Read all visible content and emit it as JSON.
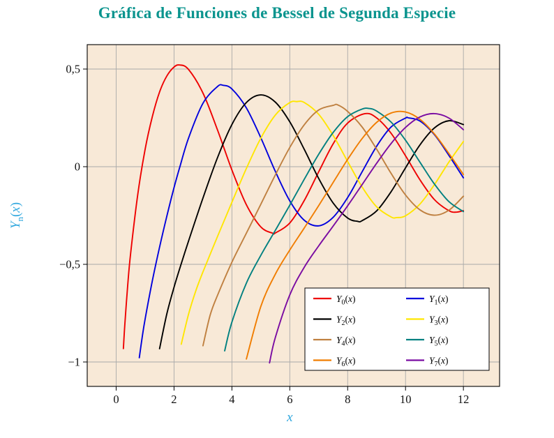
{
  "chart_data": {
    "type": "line",
    "title": "Gráfica de Funciones de Bessel de Segunda Especie",
    "xlabel": "x",
    "ylabel": "Yn(x)",
    "ylabel_parts": [
      "Y",
      "n",
      "(x)"
    ],
    "xlim": [
      -1.0,
      13.25
    ],
    "ylim": [
      -1.125,
      0.625
    ],
    "x_ticks": [
      0,
      2,
      4,
      6,
      8,
      10,
      12
    ],
    "x_tick_labels": [
      "0",
      "2",
      "4",
      "6",
      "8",
      "10",
      "12"
    ],
    "y_ticks": [
      0.5,
      0,
      -0.5,
      -1
    ],
    "y_tick_labels": [
      "0,5",
      "0",
      "−0,5",
      "−1"
    ],
    "grid": true,
    "legend_position": "bottom-right",
    "colors": {
      "plot_bg": "#f8e9d7",
      "grid": "#a9a9a9",
      "frame": "#000000",
      "tick_label": "#111111",
      "title": "#0a948e",
      "axis_label": "#2fa7de",
      "legend_bg": "#ffffff",
      "legend_border": "#000000"
    },
    "series": [
      {
        "id": "Y0",
        "label": "Y0(x)",
        "sub": "0",
        "color": "#ee0000",
        "points": [
          [
            0.25,
            -0.9316
          ],
          [
            0.3,
            -0.8073
          ],
          [
            0.4,
            -0.606
          ],
          [
            0.5,
            -0.4445
          ],
          [
            0.75,
            -0.139
          ],
          [
            1,
            0.0883
          ],
          [
            1.25,
            0.2561
          ],
          [
            1.5,
            0.3824
          ],
          [
            1.75,
            0.464
          ],
          [
            2,
            0.5104
          ],
          [
            2.2,
            0.5208
          ],
          [
            2.5,
            0.4981
          ],
          [
            3,
            0.3769
          ],
          [
            3.5,
            0.189
          ],
          [
            4,
            -0.0169
          ],
          [
            4.5,
            -0.1947
          ],
          [
            5,
            -0.3085
          ],
          [
            5.4,
            -0.3402
          ],
          [
            5.5,
            -0.3395
          ],
          [
            6,
            -0.2882
          ],
          [
            6.5,
            -0.1732
          ],
          [
            7,
            -0.0259
          ],
          [
            7.5,
            0.1173
          ],
          [
            8,
            0.2235
          ],
          [
            8.6,
            0.2716
          ],
          [
            9,
            0.2499
          ],
          [
            9.5,
            0.1712
          ],
          [
            10,
            0.0557
          ],
          [
            10.5,
            -0.0675
          ],
          [
            11,
            -0.1688
          ],
          [
            11.5,
            -0.2252
          ],
          [
            11.75,
            -0.2328
          ],
          [
            12,
            -0.2252
          ]
        ]
      },
      {
        "id": "Y1",
        "label": "Y1(x)",
        "sub": "1",
        "color": "#0000dd",
        "points": [
          [
            0.8,
            -0.9781
          ],
          [
            0.9,
            -0.8731
          ],
          [
            1,
            -0.7812
          ],
          [
            1.25,
            -0.5848
          ],
          [
            1.5,
            -0.4123
          ],
          [
            1.75,
            -0.2542
          ],
          [
            2,
            -0.107
          ],
          [
            2.2,
            -0.0015
          ],
          [
            2.5,
            0.1459
          ],
          [
            3,
            0.3247
          ],
          [
            3.5,
            0.4102
          ],
          [
            3.7,
            0.4167
          ],
          [
            4,
            0.3979
          ],
          [
            4.5,
            0.301
          ],
          [
            5,
            0.1479
          ],
          [
            5.5,
            -0.0238
          ],
          [
            6,
            -0.175
          ],
          [
            6.5,
            -0.2741
          ],
          [
            7,
            -0.3027
          ],
          [
            7.5,
            -0.2591
          ],
          [
            8,
            -0.1581
          ],
          [
            8.5,
            -0.0262
          ],
          [
            9,
            0.1043
          ],
          [
            9.5,
            0.2032
          ],
          [
            10,
            0.249
          ],
          [
            10.1,
            0.25
          ],
          [
            10.5,
            0.2337
          ],
          [
            11,
            0.1637
          ],
          [
            11.5,
            0.0579
          ],
          [
            12,
            -0.0571
          ]
        ]
      },
      {
        "id": "Y2",
        "label": "Y2(x)",
        "sub": "2",
        "color": "#000000",
        "points": [
          [
            1.5,
            -0.9321
          ],
          [
            1.75,
            -0.7545
          ],
          [
            2,
            -0.6174
          ],
          [
            2.25,
            -0.4965
          ],
          [
            2.5,
            -0.3814
          ],
          [
            3,
            -0.1604
          ],
          [
            3.5,
            0.0454
          ],
          [
            4,
            0.2159
          ],
          [
            4.5,
            0.3285
          ],
          [
            5,
            0.3677
          ],
          [
            5.5,
            0.3308
          ],
          [
            6,
            0.2299
          ],
          [
            6.5,
            0.0889
          ],
          [
            7,
            -0.0606
          ],
          [
            7.5,
            -0.1864
          ],
          [
            8,
            -0.263
          ],
          [
            8.35,
            -0.28
          ],
          [
            8.5,
            -0.2764
          ],
          [
            9,
            -0.2267
          ],
          [
            9.5,
            -0.1284
          ],
          [
            10,
            -0.0059
          ],
          [
            10.5,
            0.112
          ],
          [
            11,
            0.1986
          ],
          [
            11.5,
            0.2353
          ],
          [
            12,
            0.2157
          ]
        ]
      },
      {
        "id": "Y3",
        "label": "Y3(x)",
        "sub": "3",
        "color": "#ffe600",
        "points": [
          [
            2.25,
            -0.909
          ],
          [
            2.5,
            -0.7561
          ],
          [
            2.75,
            -0.6367
          ],
          [
            3,
            -0.5386
          ],
          [
            3.5,
            -0.3583
          ],
          [
            4,
            -0.182
          ],
          [
            4.5,
            -0.009
          ],
          [
            5,
            0.1462
          ],
          [
            5.5,
            0.2644
          ],
          [
            6,
            0.3282
          ],
          [
            6.25,
            0.3335
          ],
          [
            6.5,
            0.3288
          ],
          [
            7,
            0.2681
          ],
          [
            7.5,
            0.1597
          ],
          [
            8,
            0.0266
          ],
          [
            8.5,
            -0.1039
          ],
          [
            9,
            -0.2051
          ],
          [
            9.5,
            -0.2573
          ],
          [
            9.7,
            -0.2605
          ],
          [
            10,
            -0.2514
          ],
          [
            10.5,
            -0.191
          ],
          [
            11,
            -0.0915
          ],
          [
            11.5,
            0.0239
          ],
          [
            12,
            0.129
          ]
        ]
      },
      {
        "id": "Y4",
        "label": "Y4(x)",
        "sub": "4",
        "color": "#bf8040",
        "points": [
          [
            3,
            -0.9168
          ],
          [
            3.25,
            -0.7591
          ],
          [
            3.5,
            -0.6596
          ],
          [
            4,
            -0.4889
          ],
          [
            4.5,
            -0.3405
          ],
          [
            5,
            -0.1922
          ],
          [
            5.5,
            -0.0424
          ],
          [
            6,
            0.0984
          ],
          [
            6.5,
            0.2146
          ],
          [
            7,
            0.2904
          ],
          [
            7.5,
            0.3141
          ],
          [
            7.65,
            0.3168
          ],
          [
            8,
            0.283
          ],
          [
            8.5,
            0.2031
          ],
          [
            9,
            0.09
          ],
          [
            9.5,
            -0.0341
          ],
          [
            10,
            -0.1449
          ],
          [
            10.5,
            -0.2212
          ],
          [
            11,
            -0.2485
          ],
          [
            11.5,
            -0.2228
          ],
          [
            12,
            -0.1512
          ]
        ]
      },
      {
        "id": "Y5",
        "label": "Y5(x)",
        "sub": "5",
        "color": "#008080",
        "points": [
          [
            3.75,
            -0.9431
          ],
          [
            4,
            -0.7958
          ],
          [
            4.5,
            -0.5963
          ],
          [
            5,
            -0.4537
          ],
          [
            5.5,
            -0.3261
          ],
          [
            6,
            -0.1971
          ],
          [
            6.5,
            -0.0646
          ],
          [
            7,
            0.0638
          ],
          [
            7.5,
            0.1754
          ],
          [
            8,
            0.2564
          ],
          [
            8.5,
            0.295
          ],
          [
            8.75,
            0.298
          ],
          [
            9,
            0.2851
          ],
          [
            9.5,
            0.2286
          ],
          [
            10,
            0.1354
          ],
          [
            10.5,
            0.0225
          ],
          [
            11,
            -0.0892
          ],
          [
            11.5,
            -0.1789
          ],
          [
            12,
            -0.2298
          ]
        ]
      },
      {
        "id": "Y6",
        "label": "Y6(x)",
        "sub": "6",
        "color": "#f07d00",
        "points": [
          [
            4.5,
            -0.9847
          ],
          [
            5,
            -0.7153
          ],
          [
            5.5,
            -0.5505
          ],
          [
            6,
            -0.4268
          ],
          [
            6.5,
            -0.3141
          ],
          [
            7,
            -0.1993
          ],
          [
            7.5,
            -0.0803
          ],
          [
            8,
            0.0375
          ],
          [
            8.5,
            0.144
          ],
          [
            9,
            0.2267
          ],
          [
            9.5,
            0.2747
          ],
          [
            10,
            0.2803
          ],
          [
            10.5,
            0.2426
          ],
          [
            11,
            0.1674
          ],
          [
            11.5,
            0.0672
          ],
          [
            12,
            -0.0403
          ]
        ]
      },
      {
        "id": "Y7",
        "label": "Y7(x)",
        "sub": "7",
        "color": "#7a0ca2",
        "points": [
          [
            5.3,
            -1.0047
          ],
          [
            5.5,
            -0.875
          ],
          [
            6,
            -0.6566
          ],
          [
            6.5,
            -0.5152
          ],
          [
            7,
            -0.4054
          ],
          [
            7.5,
            -0.3038
          ],
          [
            8,
            -0.2001
          ],
          [
            8.5,
            -0.0917
          ],
          [
            9,
            0.0172
          ],
          [
            9.5,
            0.1184
          ],
          [
            10,
            0.201
          ],
          [
            10.5,
            0.2548
          ],
          [
            11,
            0.2718
          ],
          [
            11.5,
            0.249
          ],
          [
            12,
            0.1895
          ]
        ]
      }
    ]
  }
}
